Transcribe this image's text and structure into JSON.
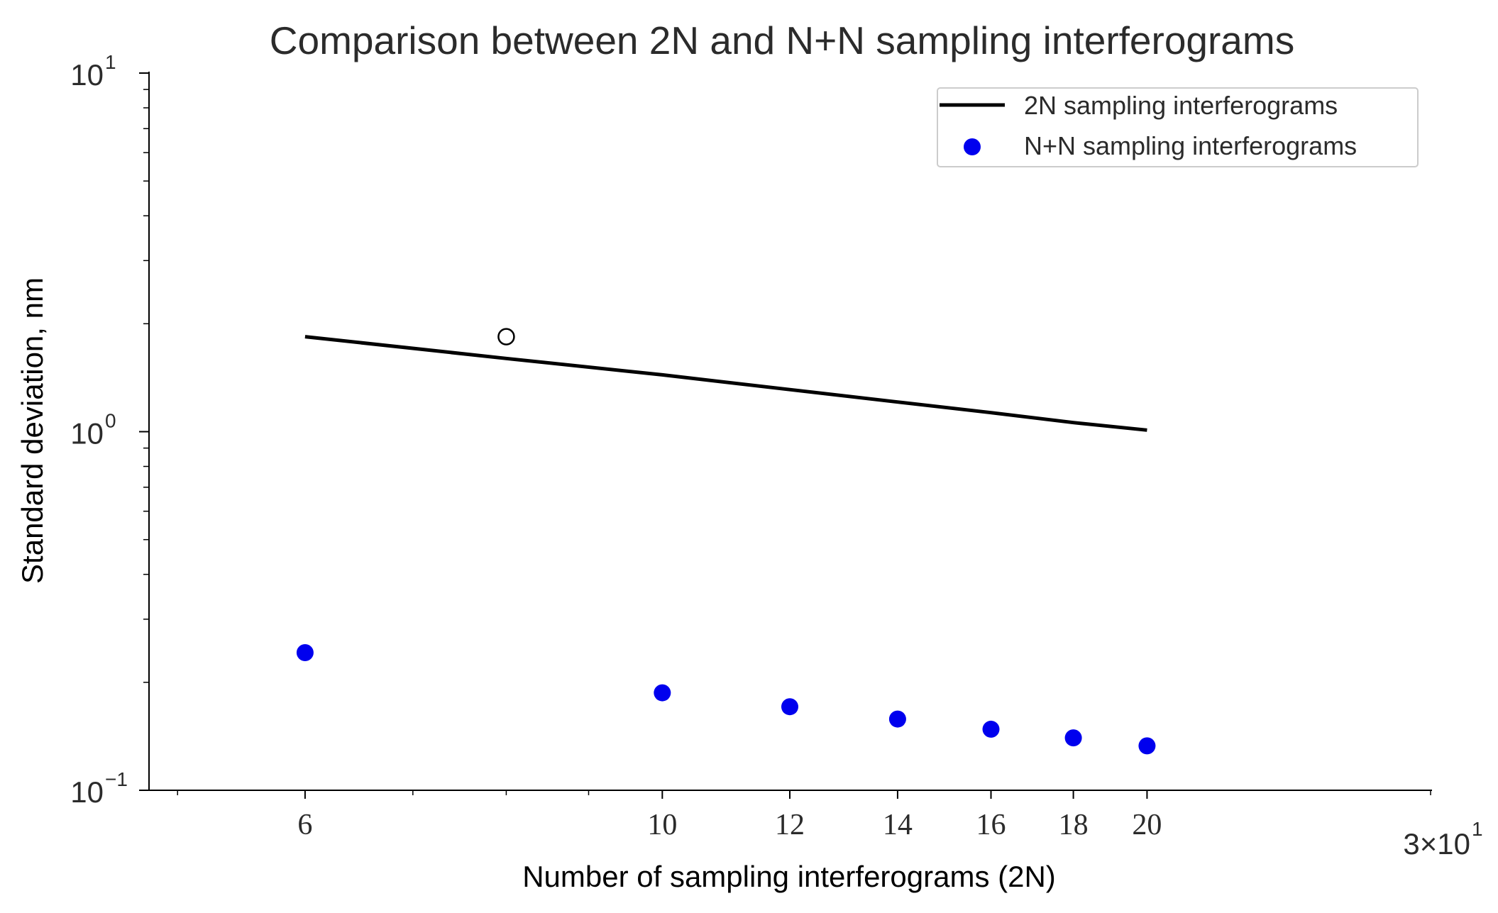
{
  "chart_data": {
    "type": "line",
    "title": "Comparison between 2N and N+N sampling interferograms",
    "xlabel": "Number of sampling interferograms (2N)",
    "ylabel": "Standard deviation, nm",
    "x_scale": "log",
    "y_scale": "log",
    "xlim": [
      4.8,
      30
    ],
    "ylim": [
      0.1,
      10
    ],
    "grid": false,
    "legend_position": "top-right",
    "x_ticks": [
      {
        "value": 6,
        "label": "6"
      },
      {
        "value": 10,
        "label": "10"
      },
      {
        "value": 12,
        "label": "12"
      },
      {
        "value": 14,
        "label": "14"
      },
      {
        "value": 16,
        "label": "16"
      },
      {
        "value": 18,
        "label": "18"
      },
      {
        "value": 20,
        "label": "20"
      }
    ],
    "x_edge_label": {
      "value": 30,
      "base": "3×10",
      "exp": "1"
    },
    "x_minor_ticks": [
      5,
      7,
      8,
      9
    ],
    "y_major_ticks": [
      {
        "value": 0.1,
        "base": "10",
        "exp": "−1"
      },
      {
        "value": 1,
        "base": "10",
        "exp": "0"
      },
      {
        "value": 10,
        "base": "10",
        "exp": "1"
      }
    ],
    "y_minor_ticks": [
      0.2,
      0.3,
      0.4,
      0.5,
      0.6,
      0.7,
      0.8,
      0.9,
      2,
      3,
      4,
      5,
      6,
      7,
      8,
      9
    ],
    "series": [
      {
        "name": "2N sampling interferograms",
        "kind": "line",
        "color": "#000000",
        "x": [
          6,
          8,
          10,
          12,
          14,
          16,
          18,
          20
        ],
        "y": [
          1.84,
          1.6,
          1.44,
          1.31,
          1.21,
          1.13,
          1.06,
          1.01
        ]
      },
      {
        "name": "N+N sampling interferograms",
        "kind": "scatter",
        "color": "#0000ee",
        "x": [
          6,
          10,
          12,
          14,
          16,
          18,
          20
        ],
        "y": [
          0.242,
          0.187,
          0.171,
          0.158,
          0.148,
          0.14,
          0.133
        ]
      },
      {
        "name": "outlier",
        "kind": "scatter-open",
        "color": "#000000",
        "x": [
          8
        ],
        "y": [
          1.84
        ]
      }
    ]
  }
}
